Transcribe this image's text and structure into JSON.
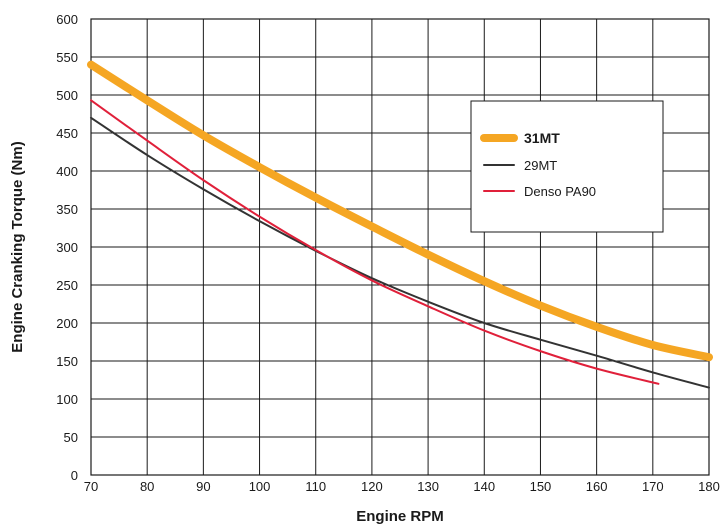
{
  "chart_data": {
    "type": "line",
    "title": "",
    "xlabel": "Engine RPM",
    "ylabel": "Engine Cranking Torque (Nm)",
    "xlim": [
      70,
      180
    ],
    "ylim": [
      0,
      600
    ],
    "x_ticks": [
      70,
      80,
      90,
      100,
      110,
      120,
      130,
      140,
      150,
      160,
      170,
      180
    ],
    "y_ticks": [
      0,
      50,
      100,
      150,
      200,
      250,
      300,
      350,
      400,
      450,
      500,
      550,
      600
    ],
    "grid": true,
    "legend_position": "right",
    "series": [
      {
        "name": "31MT",
        "color": "#f5a623",
        "emphasis": "thick",
        "points": [
          [
            70,
            540
          ],
          [
            80,
            493
          ],
          [
            90,
            447
          ],
          [
            100,
            405
          ],
          [
            110,
            365
          ],
          [
            120,
            327
          ],
          [
            130,
            290
          ],
          [
            140,
            255
          ],
          [
            150,
            223
          ],
          [
            160,
            195
          ],
          [
            170,
            171
          ],
          [
            180,
            155
          ]
        ]
      },
      {
        "name": "29MT",
        "color": "#333333",
        "emphasis": "thin",
        "points": [
          [
            70,
            470
          ],
          [
            80,
            421
          ],
          [
            90,
            376
          ],
          [
            100,
            334
          ],
          [
            110,
            295
          ],
          [
            120,
            259
          ],
          [
            130,
            228
          ],
          [
            140,
            200
          ],
          [
            150,
            178
          ],
          [
            160,
            157
          ],
          [
            170,
            135
          ],
          [
            180,
            115
          ]
        ]
      },
      {
        "name": "Denso PA90",
        "color": "#e0203a",
        "emphasis": "thin",
        "points": [
          [
            70,
            493
          ],
          [
            80,
            440
          ],
          [
            90,
            388
          ],
          [
            100,
            340
          ],
          [
            110,
            296
          ],
          [
            120,
            256
          ],
          [
            130,
            222
          ],
          [
            140,
            190
          ],
          [
            150,
            163
          ],
          [
            160,
            140
          ],
          [
            171,
            120
          ]
        ]
      }
    ]
  }
}
